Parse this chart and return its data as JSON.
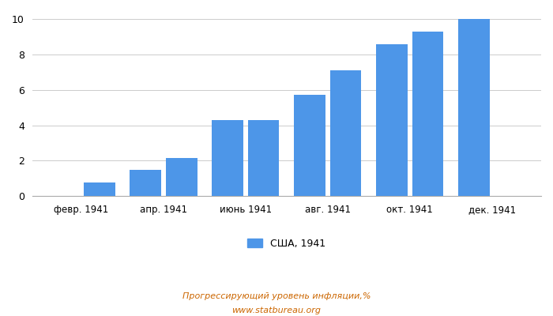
{
  "categories": [
    "февр. 1941",
    "апр. 1941",
    "июнь 1941",
    "авг. 1941",
    "окт. 1941",
    "дек. 1941"
  ],
  "values": [
    0.76,
    1.49,
    2.17,
    4.31,
    4.31,
    5.7,
    7.12,
    8.57,
    9.27,
    10.0
  ],
  "bar_color": "#4d96e8",
  "ylim": [
    0,
    10.4
  ],
  "yticks": [
    0,
    2,
    4,
    6,
    8,
    10
  ],
  "legend_label": "США, 1941",
  "footer_line1": "Прогрессирующий уровень инфляции,%",
  "footer_line2": "www.statbureau.org",
  "background_color": "#ffffff",
  "grid_color": "#cccccc",
  "footer_color": "#cc6600"
}
